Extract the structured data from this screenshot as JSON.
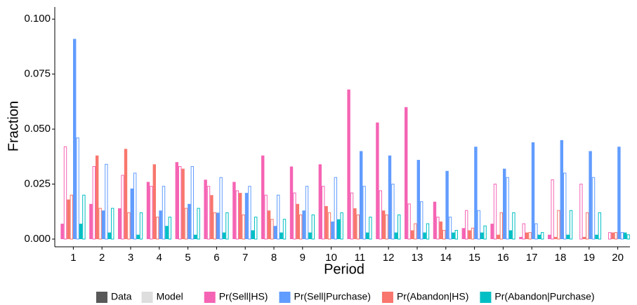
{
  "chart_data": {
    "type": "bar",
    "y_axis_label": "Fraction",
    "x_axis_label": "Period",
    "categories": [
      "1",
      "2",
      "3",
      "4",
      "5",
      "6",
      "7",
      "8",
      "9",
      "10",
      "11",
      "12",
      "13",
      "14",
      "15",
      "16",
      "17",
      "18",
      "19",
      "20"
    ],
    "style_legend": [
      {
        "name": "Data",
        "color": "#595959"
      },
      {
        "name": "Model",
        "color": "#dedede"
      }
    ],
    "series": [
      {
        "name": "Pr(Sell|HS)",
        "color": "#f564b4",
        "values": [
          0.007,
          0.016,
          0.014,
          0.026,
          0.035,
          0.027,
          0.026,
          0.038,
          0.033,
          0.034,
          0.068,
          0.053,
          0.06,
          0.017,
          0.005,
          0.007,
          0.001,
          0.002,
          0.0,
          0.0
        ],
        "model_values": [
          0.042,
          0.033,
          0.029,
          0.024,
          0.033,
          0.024,
          0.022,
          0.02,
          0.021,
          0.024,
          0.021,
          0.022,
          0.016,
          0.01,
          0.013,
          0.025,
          0.007,
          0.027,
          0.025,
          0.003
        ]
      },
      {
        "name": "Pr(Sell|Purchase)",
        "color": "#619cff",
        "values": [
          0.091,
          0.013,
          0.023,
          0.013,
          0.016,
          0.012,
          0.021,
          0.006,
          0.013,
          0.008,
          0.04,
          0.038,
          0.036,
          0.031,
          0.042,
          0.032,
          0.044,
          0.045,
          0.04,
          0.042
        ],
        "model_values": [
          0.046,
          0.034,
          0.03,
          0.024,
          0.033,
          0.028,
          0.024,
          0.02,
          0.024,
          0.028,
          0.024,
          0.025,
          0.017,
          0.01,
          0.013,
          0.028,
          0.007,
          0.03,
          0.028,
          0.003
        ]
      },
      {
        "name": "Pr(Abandon|HS)",
        "color": "#f8766d",
        "values": [
          0.018,
          0.038,
          0.041,
          0.034,
          0.032,
          0.02,
          0.021,
          0.013,
          0.016,
          0.015,
          0.014,
          0.013,
          0.004,
          0.008,
          0.004,
          0.002,
          0.003,
          0.001,
          0.001,
          0.003
        ],
        "model_values": [
          0.02,
          0.014,
          0.012,
          0.01,
          0.014,
          0.012,
          0.011,
          0.009,
          0.011,
          0.012,
          0.011,
          0.011,
          0.007,
          0.004,
          0.005,
          0.012,
          0.003,
          0.013,
          0.012,
          0.003
        ]
      },
      {
        "name": "Pr(Abandon|Purchase)",
        "color": "#00bfc4",
        "values": [
          0.007,
          0.003,
          0.002,
          0.006,
          0.002,
          0.003,
          0.004,
          0.003,
          0.003,
          0.009,
          0.003,
          0.003,
          0.003,
          0.003,
          0.003,
          0.004,
          0.002,
          0.002,
          0.002,
          0.003
        ],
        "model_values": [
          0.02,
          0.014,
          0.012,
          0.01,
          0.014,
          0.012,
          0.01,
          0.009,
          0.011,
          0.012,
          0.01,
          0.011,
          0.007,
          0.004,
          0.006,
          0.012,
          0.003,
          0.013,
          0.012,
          0.002
        ]
      }
    ],
    "ylim": [
      -0.0035,
      0.1055
    ],
    "yticks": [
      {
        "value": 0,
        "label": "0.000"
      },
      {
        "value": 0.025,
        "label": "0.025"
      },
      {
        "value": 0.05,
        "label": "0.050"
      },
      {
        "value": 0.075,
        "label": "0.075"
      },
      {
        "value": 0.1,
        "label": "0.100"
      }
    ],
    "grid": false
  }
}
